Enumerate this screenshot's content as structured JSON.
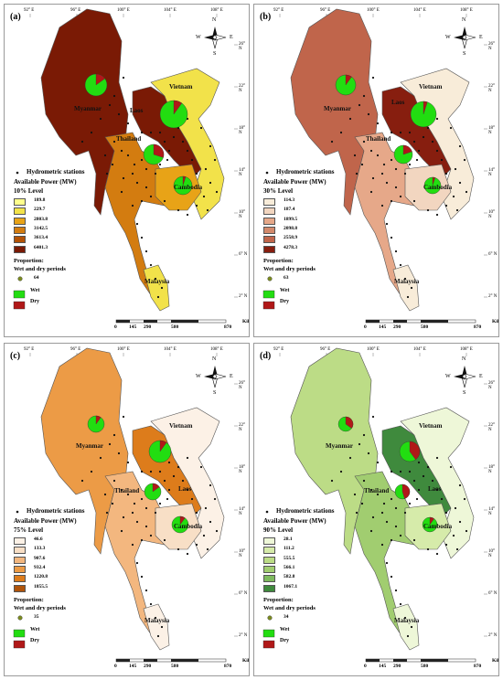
{
  "legend_titles": {
    "stations": "Hydrometric stations",
    "power": "Available Power (MW)",
    "proportion": "Proportion:",
    "periods": "Wet and dry periods",
    "wet": "Wet",
    "dry": "Dry",
    "kilometers": "Kilometers"
  },
  "scale_ticks": [
    "0",
    "145",
    "290",
    "580",
    "870"
  ],
  "longitude_labels": [
    "92° E",
    "96° E",
    "100° E",
    "104° E",
    "108° E"
  ],
  "latitude_labels": [
    "26° N",
    "22° N",
    "18° N",
    "14° N",
    "10° N",
    "6° N",
    "2° N"
  ],
  "compass": {
    "n": "N",
    "s": "S",
    "e": "E",
    "w": "W"
  },
  "countries": [
    "Myanmar",
    "Vietnam",
    "Laos",
    "Thailand",
    "Cambodia",
    "Malaysia"
  ],
  "colors": {
    "wet": "#22dd11",
    "dry": "#b01818"
  },
  "panels": [
    {
      "label": "(a)",
      "level": "10% Level",
      "values": [
        "189.8",
        "229.7",
        "2803.8",
        "3142.5",
        "3613.4",
        "6401.3"
      ],
      "colors": [
        "#ffff8c",
        "#f2e24a",
        "#e8a317",
        "#d37c10",
        "#b35206",
        "#7a1a05"
      ],
      "circle_value": "64"
    },
    {
      "label": "(b)",
      "level": "30% Level",
      "values": [
        "114.3",
        "187.4",
        "1899.5",
        "2098.8",
        "2558.9",
        "4278.3"
      ],
      "colors": [
        "#f8ecd9",
        "#f2d6c0",
        "#e6a889",
        "#d3896b",
        "#c0654b",
        "#871e0f"
      ],
      "circle_value": "63"
    },
    {
      "label": "(c)",
      "level": "75% Level",
      "values": [
        "46.6",
        "133.3",
        "907.6",
        "932.4",
        "1220.8",
        "1855.5"
      ],
      "colors": [
        "#fcf1e6",
        "#f8dfc6",
        "#f3b77f",
        "#ec9b46",
        "#dd7c1b",
        "#b0540b"
      ],
      "circle_value": "35"
    },
    {
      "label": "(d)",
      "level": "90% Level",
      "values": [
        "28.1",
        "111.2",
        "555.5",
        "566.1",
        "582.8",
        "1067.1"
      ],
      "colors": [
        "#eef7d8",
        "#d6ebaa",
        "#bcdc86",
        "#a1cd70",
        "#7eba5e",
        "#3f8a3d"
      ],
      "circle_value": "34"
    }
  ]
}
